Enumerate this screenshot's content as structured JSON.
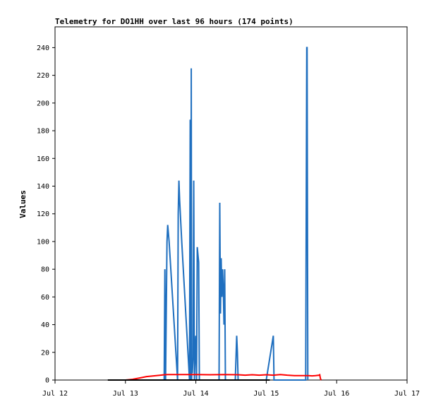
{
  "chart_data": {
    "type": "line",
    "title": "Telemetry for DO1HH over last 96 hours (174 points)",
    "xlabel": "",
    "ylabel": "Values",
    "x_axis": {
      "ticks": [
        "Jul 12",
        "Jul 13",
        "Jul 14",
        "Jul 15",
        "Jul 16",
        "Jul 17"
      ],
      "range_days": [
        12,
        17
      ],
      "unit": "day-of-July"
    },
    "y_axis": {
      "ticks": [
        0,
        20,
        40,
        60,
        80,
        100,
        120,
        140,
        160,
        180,
        200,
        220,
        240
      ],
      "ylim": [
        0,
        255
      ]
    },
    "grid": false,
    "series": [
      {
        "color": "#1f6fbf",
        "x": [
          13.55,
          13.56,
          13.57,
          13.58,
          13.59,
          13.6,
          13.62,
          13.74,
          13.75,
          13.76,
          13.77,
          13.78,
          13.8,
          13.91,
          13.92,
          13.93,
          13.935,
          13.94,
          13.945,
          13.95,
          13.96,
          13.97,
          13.98,
          13.99,
          14.0,
          14.01,
          14.02,
          14.04,
          14.05,
          14.06,
          14.08,
          14.09,
          14.11,
          14.12,
          14.14,
          14.18,
          14.22,
          14.33,
          14.34,
          14.35,
          14.36,
          14.37,
          14.38,
          14.39,
          14.4,
          14.41,
          14.42,
          14.43,
          14.45,
          14.56,
          14.58,
          14.59,
          14.6,
          14.62,
          15.0,
          15.1,
          15.11,
          15.12,
          15.56,
          15.57,
          15.575,
          15.58,
          15.59
        ],
        "y": [
          0,
          80,
          0,
          50,
          100,
          112,
          100,
          0,
          120,
          144,
          130,
          120,
          100,
          0,
          188,
          0,
          225,
          0,
          15,
          5,
          16,
          144,
          0,
          20,
          32,
          0,
          96,
          85,
          0,
          0,
          0,
          0,
          0,
          0,
          0,
          0,
          0,
          0,
          128,
          48,
          88,
          60,
          80,
          65,
          40,
          80,
          0,
          0,
          0,
          0,
          32,
          20,
          0,
          0,
          0,
          32,
          0,
          0,
          0,
          160,
          240,
          240,
          0
        ]
      },
      {
        "color": "#ff0000",
        "x": [
          13.0,
          13.1,
          13.2,
          13.3,
          13.4,
          13.5,
          13.55,
          13.6,
          13.8,
          14.0,
          14.2,
          14.4,
          14.6,
          14.7,
          14.8,
          14.9,
          15.0,
          15.1,
          15.2,
          15.3,
          15.4,
          15.5,
          15.6,
          15.65,
          15.7,
          15.75,
          15.76,
          15.77,
          15.78
        ],
        "y": [
          0,
          0.5,
          1.5,
          2.5,
          3,
          3.5,
          3.8,
          4,
          4,
          4,
          3.8,
          4,
          3.8,
          3.5,
          3.8,
          3.5,
          3.8,
          3.5,
          4,
          3.5,
          3.2,
          3.2,
          3.2,
          3.0,
          3.2,
          3.5,
          3.8,
          1,
          0
        ]
      },
      {
        "color": "#000000",
        "x": [
          12.75,
          15.05
        ],
        "y": [
          0,
          0
        ]
      }
    ]
  }
}
